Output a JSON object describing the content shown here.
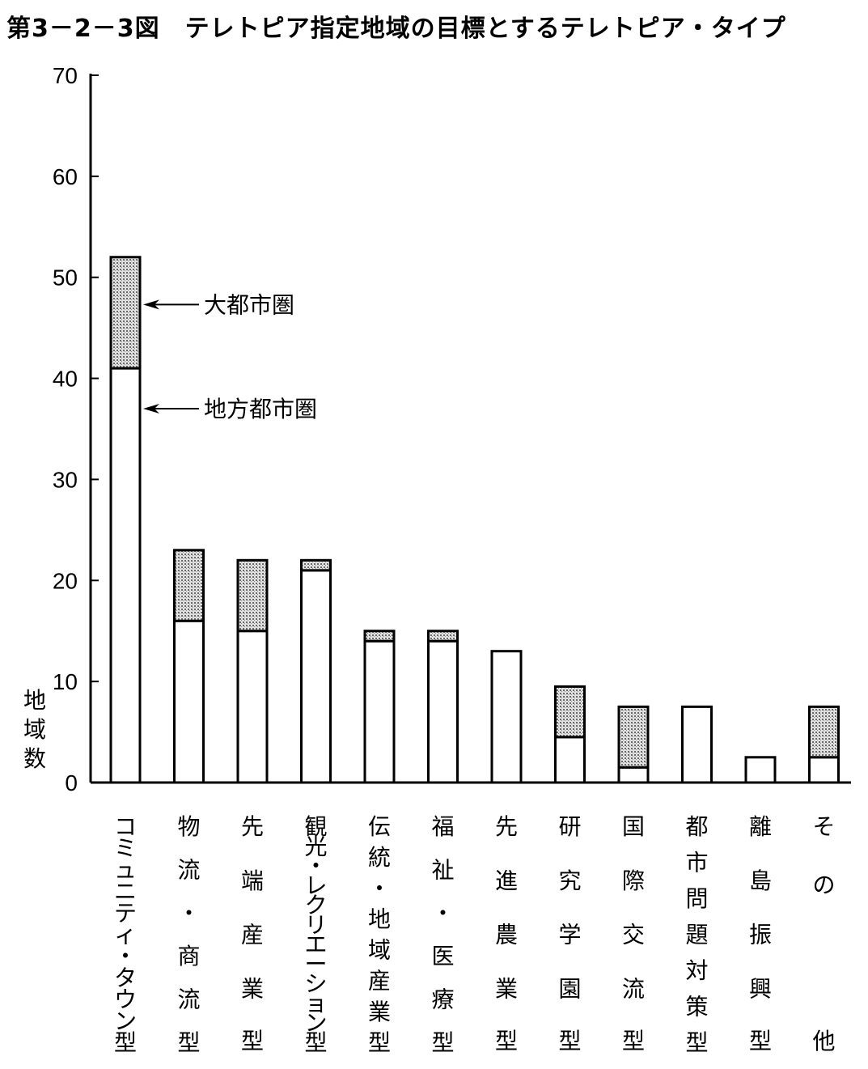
{
  "title": "第3－2－3図　テレトピア指定地域の目標とするテレトピア・タイプ",
  "chart_data": {
    "type": "bar",
    "stacked": true,
    "title": "第3－2－3図　テレトピア指定地域の目標とするテレトピア・タイプ",
    "ylabel": "地域数",
    "xlabel": "",
    "ylim": [
      0,
      70
    ],
    "yticks": [
      0,
      10,
      20,
      30,
      40,
      50,
      60,
      70
    ],
    "grid": false,
    "categories": [
      "コミュニティ・タウン型",
      "物流・商流型",
      "先端産業型",
      "観光・レクリエーション型",
      "伝統・地域産業型",
      "福祉・医療型",
      "先進農業型",
      "研究学園型",
      "国際交流型",
      "都市問題対策型",
      "離島振興型",
      "その他"
    ],
    "series": [
      {
        "name": "地方都市圏",
        "fill": "#ffffff",
        "values": [
          41,
          16,
          15,
          21,
          14,
          14,
          13,
          4.5,
          1.5,
          7.5,
          2.5,
          2.5
        ]
      },
      {
        "name": "大都市圏",
        "fill": "#bdbdbd",
        "values": [
          11,
          7,
          7,
          1,
          1,
          1,
          0,
          5,
          6,
          0,
          0,
          5
        ]
      }
    ],
    "annotations": [
      {
        "text": "大都市圏",
        "series": "大都市圏"
      },
      {
        "text": "地方都市圏",
        "series": "地方都市圏"
      }
    ]
  }
}
